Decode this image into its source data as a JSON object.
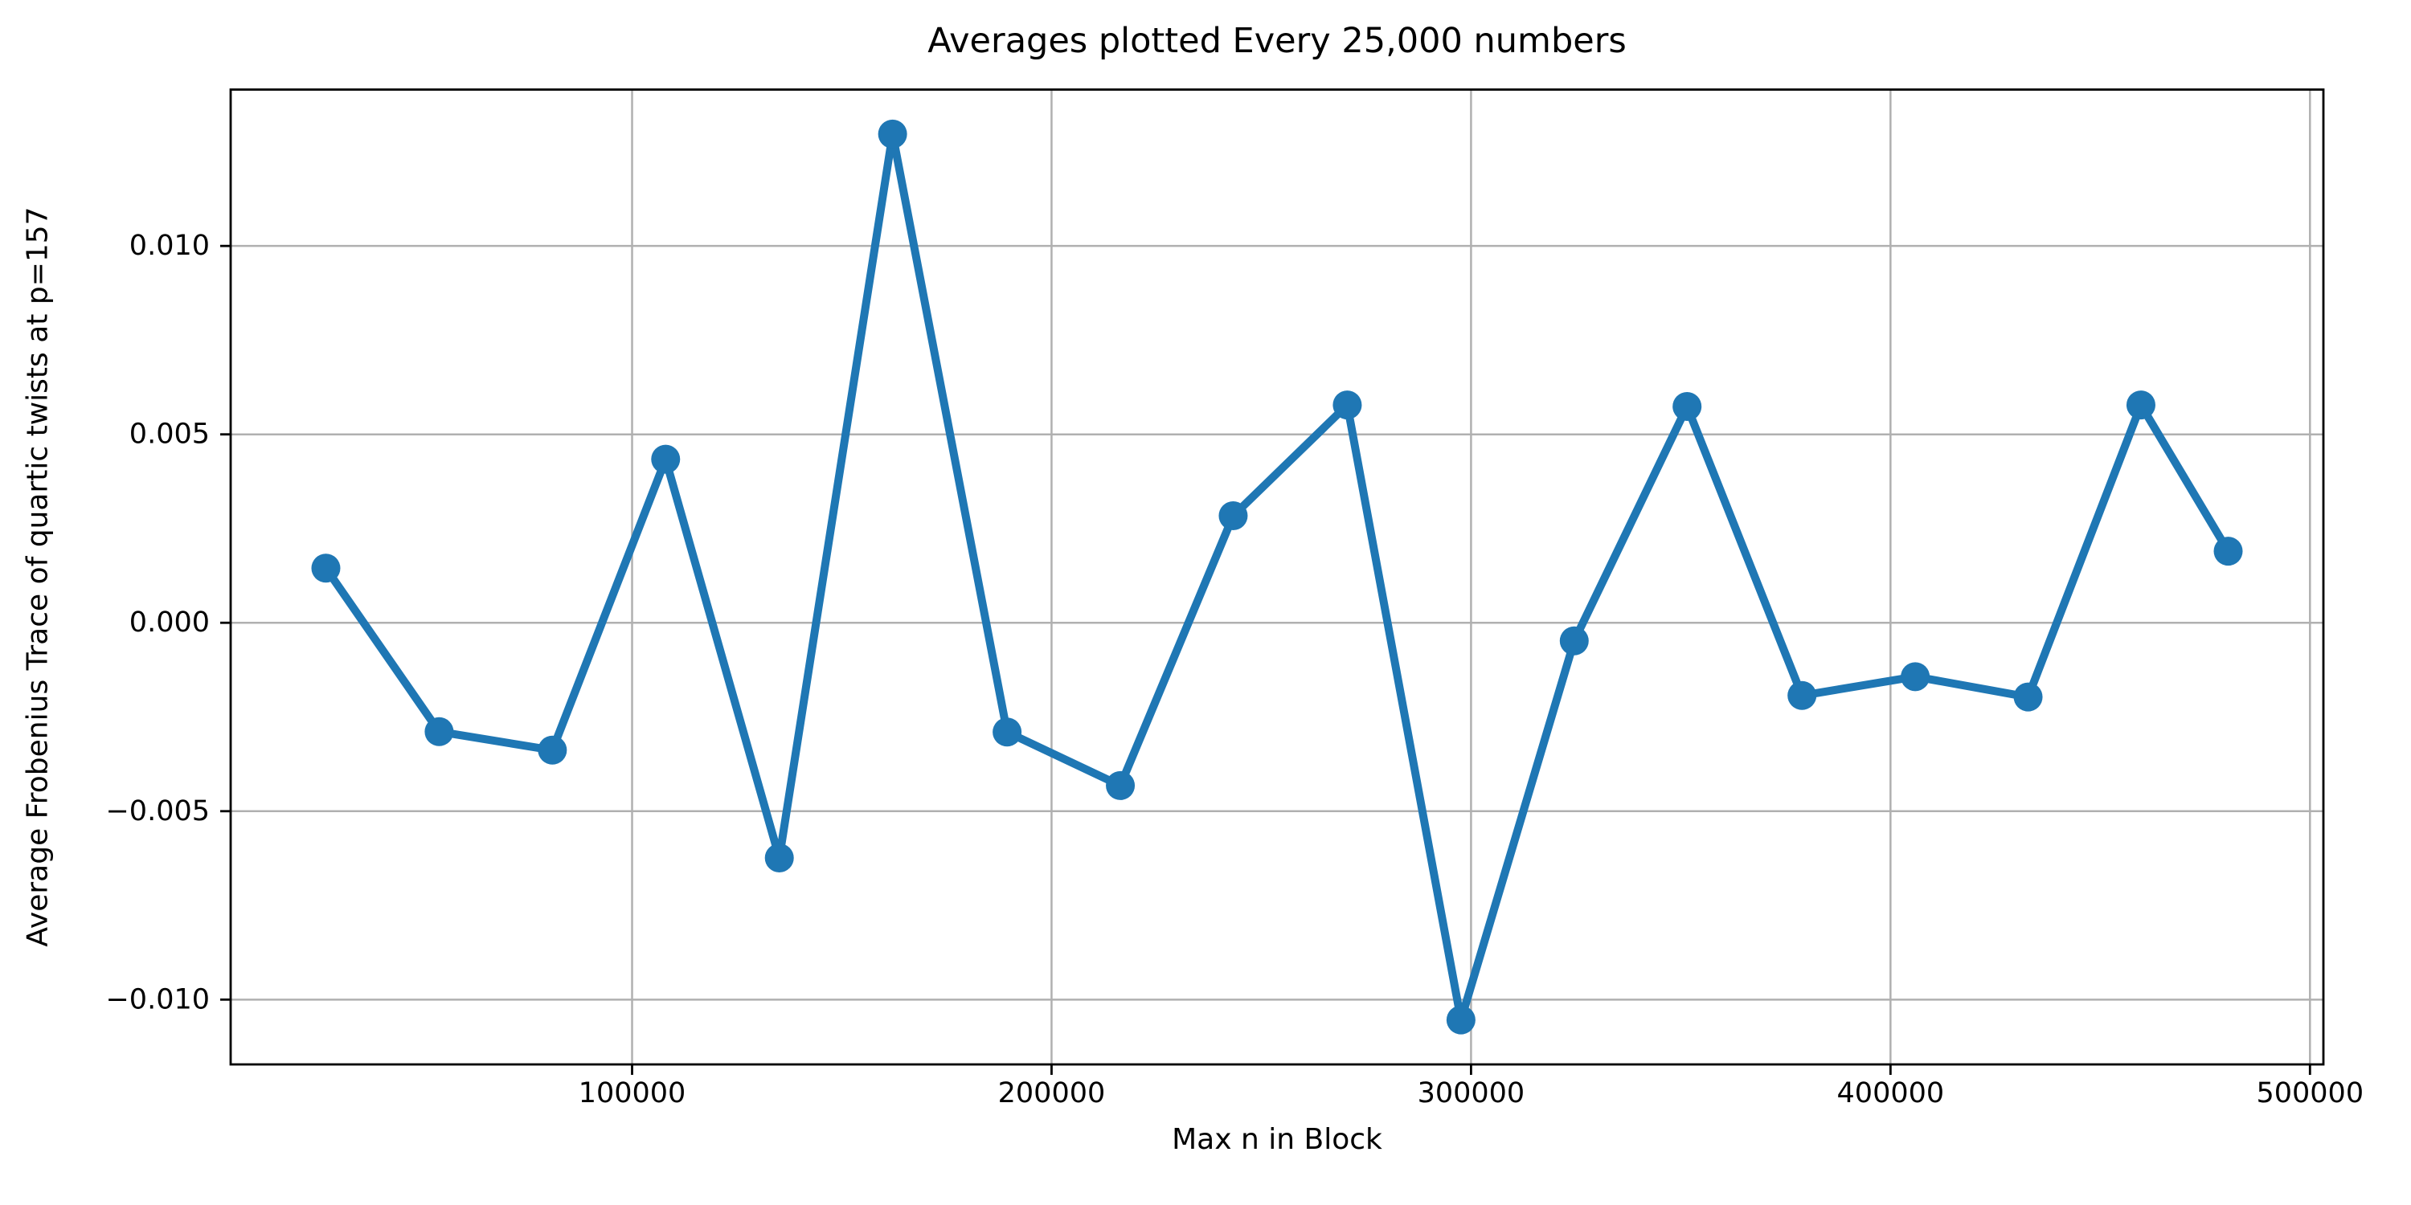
{
  "figure": {
    "background": "#ffffff"
  },
  "chart_data": {
    "type": "line",
    "title": "Averages plotted Every 25,000 numbers",
    "xlabel": "Max n in Block",
    "ylabel": "Average Frobenius Trace of quartic twists at p=157",
    "x": [
      27000,
      54000,
      81000,
      108000,
      135100,
      162100,
      189400,
      216400,
      243300,
      270500,
      297600,
      324600,
      351500,
      378900,
      405900,
      432800,
      459700,
      480500
    ],
    "y": [
      0.00145,
      -0.00289,
      -0.00338,
      0.00434,
      -0.00624,
      0.01297,
      -0.0029,
      -0.00432,
      0.00284,
      0.00578,
      -0.01054,
      -0.00048,
      0.00574,
      -0.00193,
      -0.00143,
      -0.00197,
      0.00578,
      0.0019
    ],
    "xlim": [
      4300,
      503200
    ],
    "ylim": [
      -0.01172,
      0.01415
    ],
    "xticks": {
      "values": [
        100000,
        200000,
        300000,
        400000,
        500000
      ],
      "labels": [
        "100000",
        "200000",
        "300000",
        "400000",
        "500000"
      ]
    },
    "yticks": {
      "values": [
        -0.01,
        -0.005,
        0.0,
        0.005,
        0.01
      ],
      "labels": [
        "−0.010",
        "−0.005",
        "0.000",
        "0.005",
        "0.010"
      ]
    },
    "grid": true,
    "legend": null,
    "line_color": "#1f77b4",
    "marker": "circle",
    "grid_color": "#b0b0b0",
    "spine_color": "#000000",
    "text_color": "#000000"
  }
}
